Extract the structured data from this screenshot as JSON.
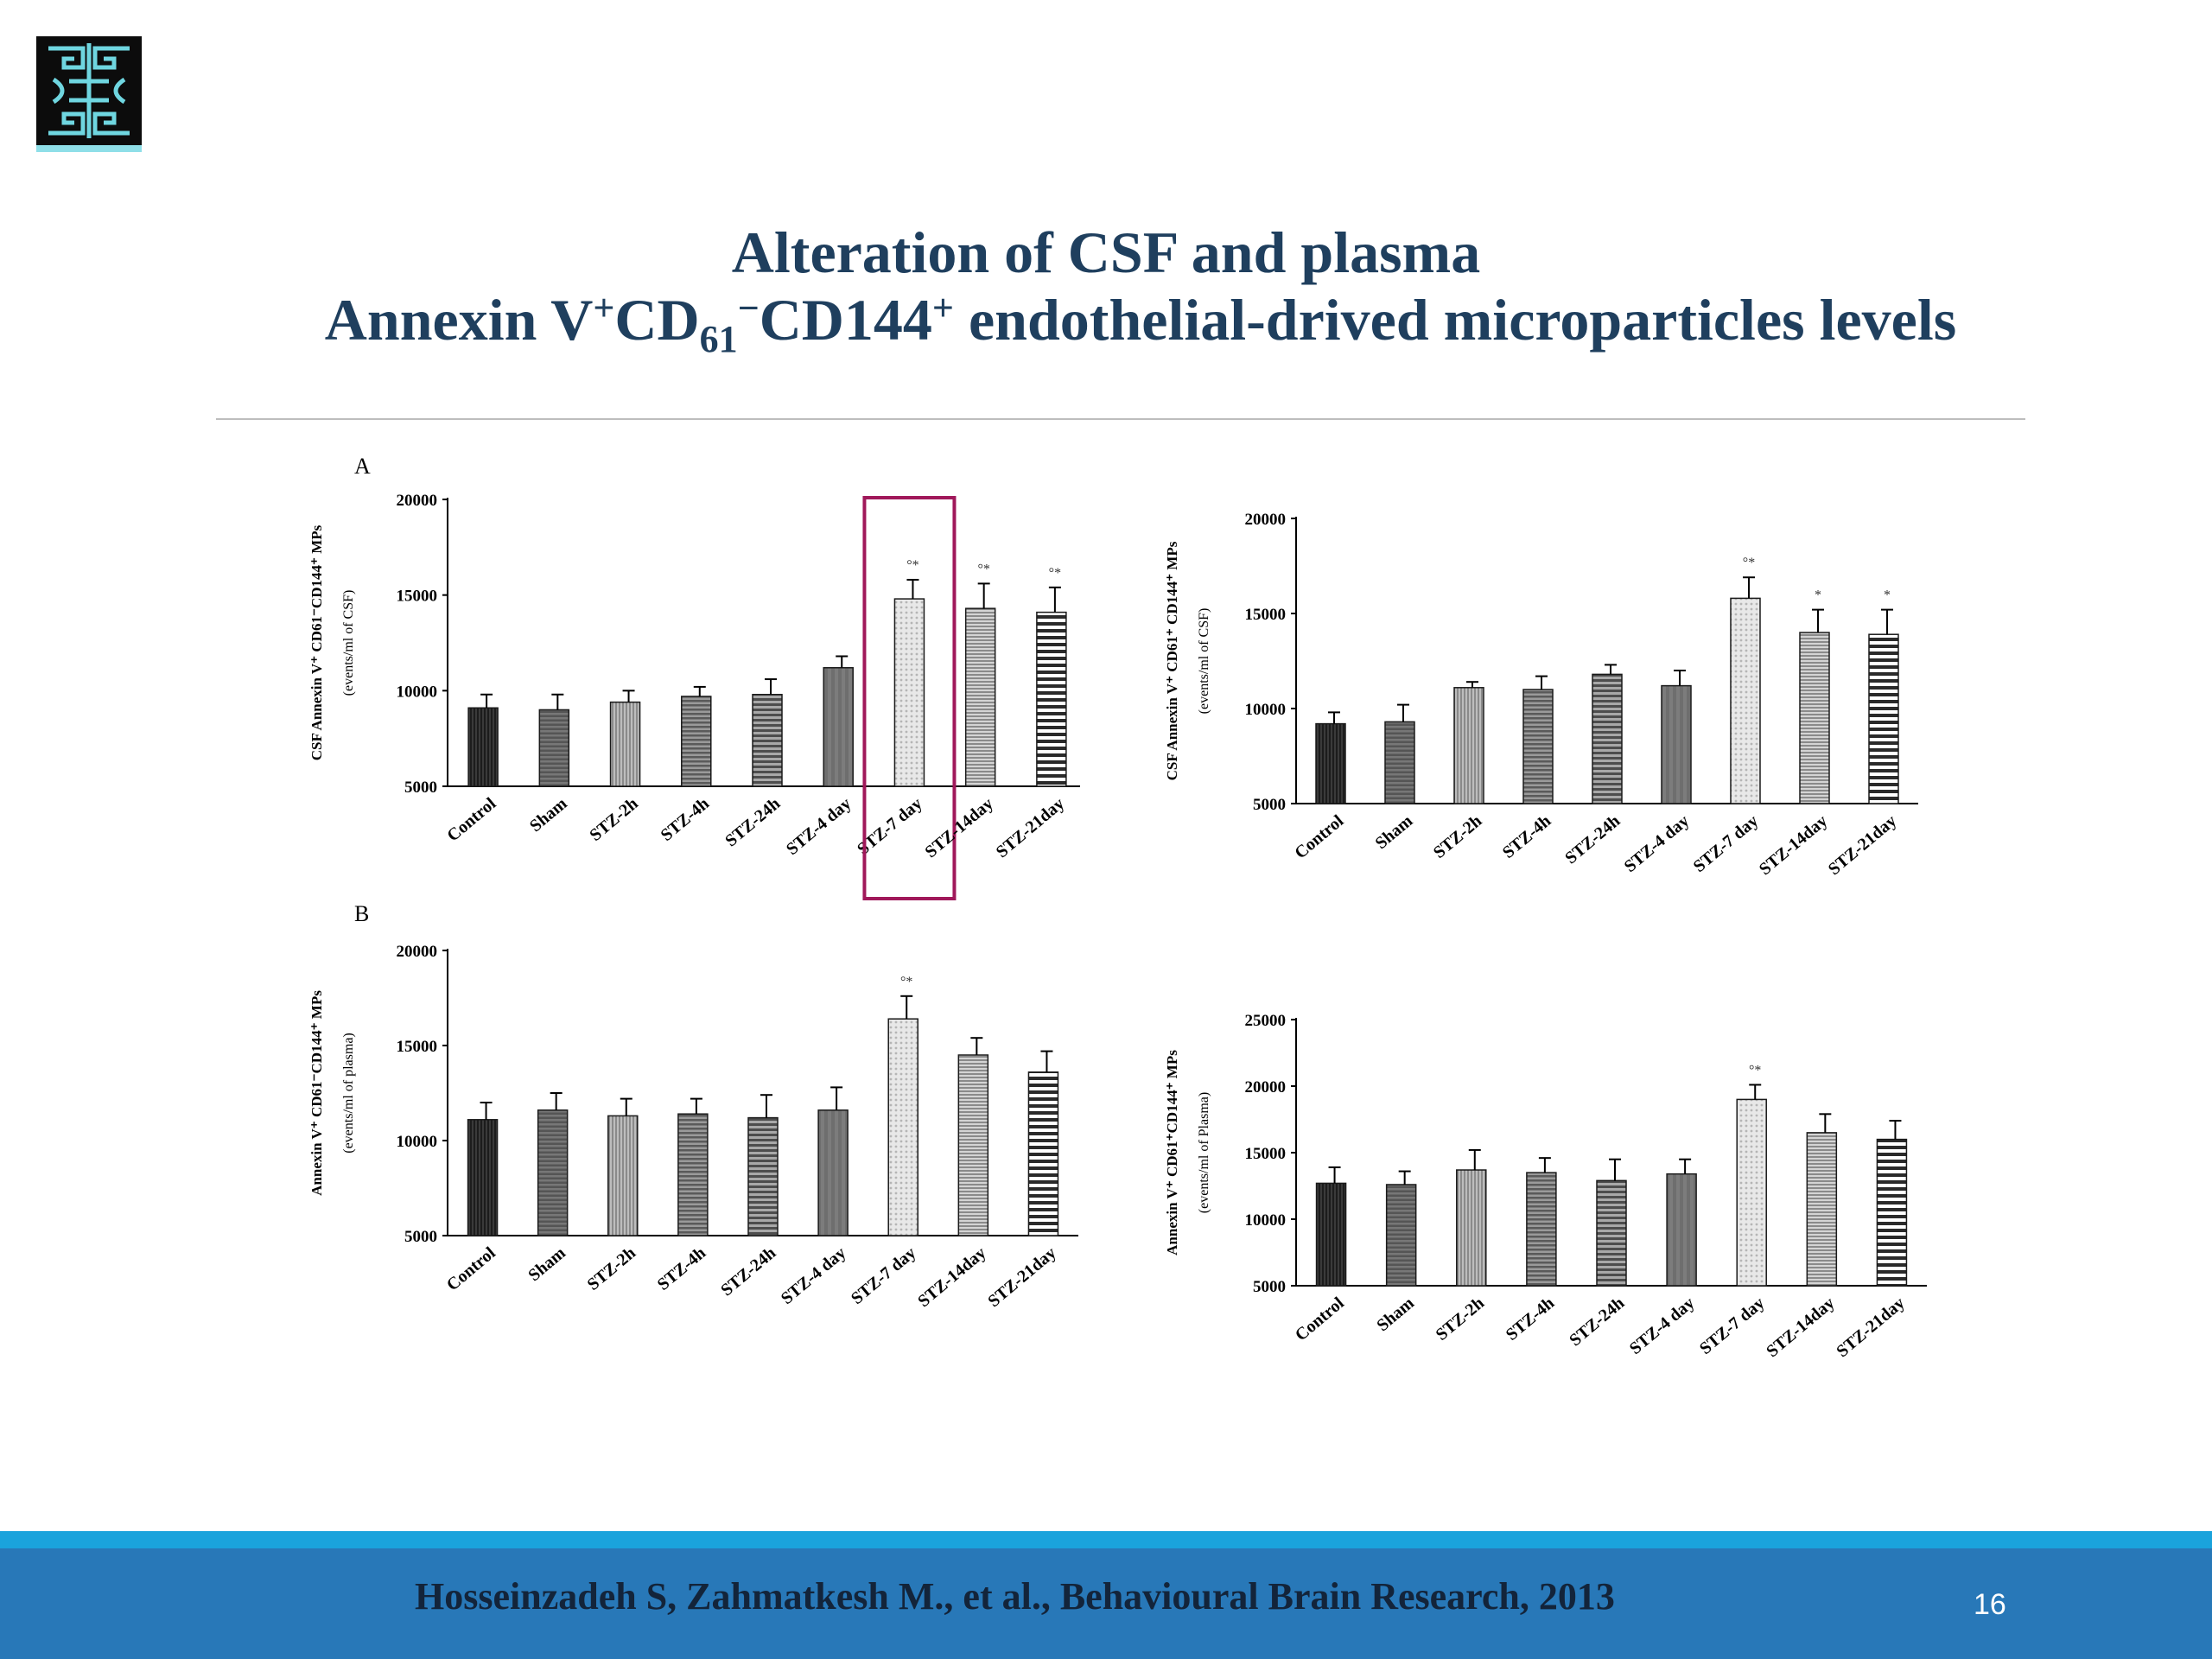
{
  "slide": {
    "title_line1": "Alteration of CSF and plasma",
    "title_line2": {
      "p1": "Annexin V",
      "sup1": "+",
      "p2": "CD",
      "sub1": "61",
      "sup2": "−",
      "p3": "CD144",
      "sup3": "+",
      "p4": " endothelial-drived  microparticles levels"
    },
    "citation": "Hosseinzadeh S, Zahmatkesh M., et al., Behavioural Brain Research, 2013",
    "page_number": "16",
    "colors": {
      "title": "#1f3f5e",
      "footer": "#2878b8",
      "footer_accent": "#1aa3dc",
      "highlight_box": "#a0185a"
    }
  },
  "chart_data": [
    {
      "type": "bar",
      "panel_label": "A",
      "ylabel": "CSF Annexin V⁺ CD61⁻CD144⁺ MPs",
      "ylabel2": "(events/ml of CSF)",
      "ylim": [
        5000,
        20000
      ],
      "yticks": [
        5000,
        10000,
        15000,
        20000
      ],
      "categories": [
        "Control",
        "Sham",
        "STZ-2h",
        "STZ-4h",
        "STZ-24h",
        "STZ-4 day",
        "STZ-7 day",
        "STZ-14day",
        "STZ-21day"
      ],
      "values": [
        9100,
        9000,
        9400,
        9700,
        9800,
        11200,
        14800,
        14300,
        14100
      ],
      "errors": [
        700,
        800,
        600,
        500,
        800,
        600,
        1000,
        1300,
        1300
      ],
      "significance": [
        "",
        "",
        "",
        "",
        "",
        "",
        "°*",
        "°*",
        "°*"
      ],
      "highlight_category": "STZ-7 day"
    },
    {
      "type": "bar",
      "ylabel": "CSF Annexin V⁺ CD61⁺ CD144⁺ MPs",
      "ylabel2": "(events/ml of CSF)",
      "ylim": [
        5000,
        20000
      ],
      "yticks": [
        5000,
        10000,
        15000,
        20000
      ],
      "categories": [
        "Control",
        "Sham",
        "STZ-2h",
        "STZ-4h",
        "STZ-24h",
        "STZ-4 day",
        "STZ-7 day",
        "STZ-14day",
        "STZ-21day"
      ],
      "values": [
        9200,
        9300,
        11100,
        11000,
        11800,
        11200,
        15800,
        14000,
        13900
      ],
      "errors": [
        600,
        900,
        300,
        700,
        500,
        800,
        1100,
        1200,
        1300
      ],
      "significance": [
        "",
        "",
        "",
        "",
        "",
        "",
        "°*",
        "*",
        "*"
      ]
    },
    {
      "type": "bar",
      "panel_label": "B",
      "ylabel": "Annexin V⁺ CD61⁻CD144⁺ MPs",
      "ylabel2": "(events/ml of plasma)",
      "ylim": [
        5000,
        20000
      ],
      "yticks": [
        5000,
        10000,
        15000,
        20000
      ],
      "categories": [
        "Control",
        "Sham",
        "STZ-2h",
        "STZ-4h",
        "STZ-24h",
        "STZ-4 day",
        "STZ-7 day",
        "STZ-14day",
        "STZ-21day"
      ],
      "values": [
        11100,
        11600,
        11300,
        11400,
        11200,
        11600,
        16400,
        14500,
        13600
      ],
      "errors": [
        900,
        900,
        900,
        800,
        1200,
        1200,
        1200,
        900,
        1100
      ],
      "significance": [
        "",
        "",
        "",
        "",
        "",
        "",
        "°*",
        "",
        ""
      ]
    },
    {
      "type": "bar",
      "ylabel": "Annexin V⁺ CD61⁺CD144⁺ MPs",
      "ylabel2": "(events/ml of Plasma)",
      "ylim": [
        5000,
        25000
      ],
      "yticks": [
        5000,
        10000,
        15000,
        20000,
        25000
      ],
      "categories": [
        "Control",
        "Sham",
        "STZ-2h",
        "STZ-4h",
        "STZ-24h",
        "STZ-4 day",
        "STZ-7 day",
        "STZ-14day",
        "STZ-21day"
      ],
      "values": [
        12700,
        12600,
        13700,
        13500,
        12900,
        13400,
        19000,
        16500,
        16000
      ],
      "errors": [
        1200,
        1000,
        1500,
        1100,
        1600,
        1100,
        1100,
        1400,
        1400
      ],
      "significance": [
        "",
        "",
        "",
        "",
        "",
        "",
        "°*",
        "",
        ""
      ]
    }
  ]
}
